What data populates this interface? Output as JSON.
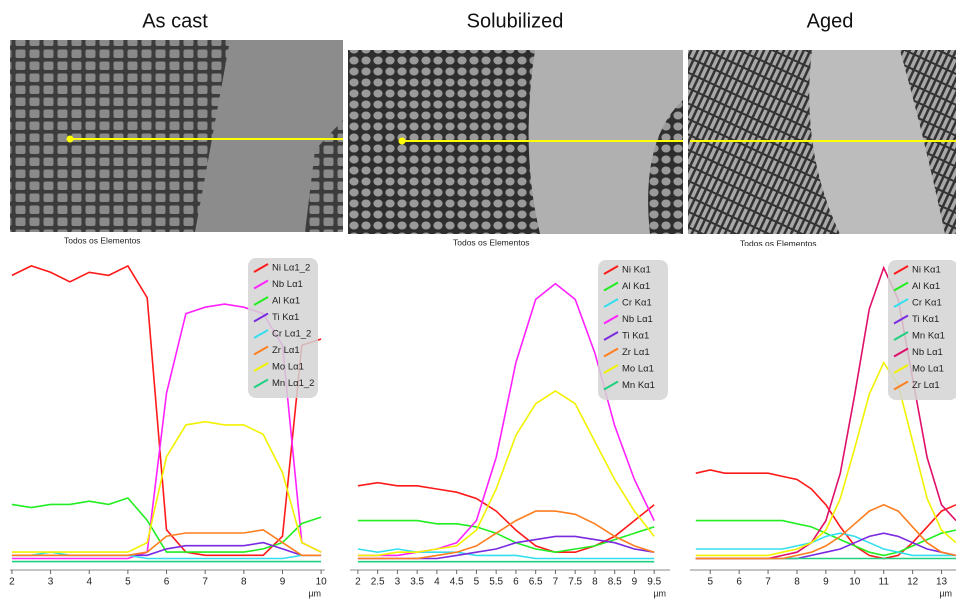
{
  "chart_data": [
    {
      "type": "line",
      "title": "As cast",
      "subtitle": "Todos os Elementos",
      "x_label": "µm",
      "x": [
        2,
        2.5,
        3,
        3.5,
        4,
        4.5,
        5,
        5.5,
        6,
        6.5,
        7,
        7.5,
        8,
        8.5,
        9,
        9.5,
        10
      ],
      "xlim": [
        1.95,
        10.1
      ],
      "xticks": [
        2,
        3,
        4,
        5,
        6,
        7,
        8,
        9,
        10
      ],
      "ylim": [
        0,
        100
      ],
      "series": [
        {
          "name": "Ni Lα1_2",
          "color": "#ff1a1a",
          "values": [
            92,
            95,
            93,
            90,
            93,
            92,
            95,
            85,
            12,
            5,
            4,
            4,
            4,
            4,
            10,
            70,
            72
          ]
        },
        {
          "name": "Nb Lα1",
          "color": "#ff22ff",
          "values": [
            3,
            3,
            3,
            3,
            3,
            3,
            3,
            5,
            55,
            80,
            82,
            83,
            82,
            80,
            70,
            8,
            5
          ]
        },
        {
          "name": "Al Kα1",
          "color": "#22ee22",
          "values": [
            20,
            19,
            20,
            20,
            21,
            20,
            22,
            15,
            5,
            5,
            5,
            5,
            5,
            6,
            8,
            14,
            16
          ]
        },
        {
          "name": "Ti Kα1",
          "color": "#7a2ae0",
          "values": [
            4,
            4,
            4,
            4,
            4,
            4,
            4,
            4,
            6,
            7,
            7,
            7,
            7,
            8,
            6,
            4,
            4
          ]
        },
        {
          "name": "Cr Lα1_2",
          "color": "#33dfee",
          "values": [
            4,
            4,
            5,
            4,
            4,
            4,
            4,
            3,
            3,
            3,
            3,
            3,
            3,
            3,
            3,
            4,
            4
          ]
        },
        {
          "name": "Zr Lα1",
          "color": "#ff7f20",
          "values": [
            4,
            4,
            4,
            4,
            4,
            4,
            4,
            5,
            10,
            11,
            11,
            11,
            11,
            12,
            8,
            4,
            4
          ]
        },
        {
          "name": "Mo Lα1",
          "color": "#f2f200",
          "values": [
            5,
            5,
            5,
            5,
            5,
            5,
            5,
            8,
            35,
            45,
            46,
            45,
            45,
            42,
            30,
            8,
            5
          ]
        },
        {
          "name": "Mn Lα1_2",
          "color": "#20d080",
          "values": [
            2,
            2,
            2,
            2,
            2,
            2,
            2,
            2,
            2,
            2,
            2,
            2,
            2,
            2,
            2,
            2,
            2
          ]
        }
      ]
    },
    {
      "type": "line",
      "title": "Solubilized",
      "subtitle": "Todos os Elementos",
      "x_label": "µm",
      "x": [
        2,
        2.5,
        3,
        3.5,
        4,
        4.5,
        5,
        5.5,
        6,
        6.5,
        7,
        7.5,
        8,
        8.5,
        9,
        9.5
      ],
      "xlim": [
        1.8,
        9.9
      ],
      "xticks": [
        2,
        2.5,
        3,
        3.5,
        4,
        4.5,
        5,
        5.5,
        6,
        6.5,
        7,
        7.5,
        8,
        8.5,
        9,
        9.5
      ],
      "ylim": [
        0,
        100
      ],
      "series": [
        {
          "name": "Ni Kα1",
          "color": "#ff1a1a",
          "values": [
            26,
            27,
            26,
            26,
            25,
            24,
            22,
            18,
            12,
            7,
            5,
            5,
            7,
            10,
            15,
            20
          ]
        },
        {
          "name": "Al Kα1",
          "color": "#22ee22",
          "values": [
            15,
            15,
            15,
            15,
            14,
            14,
            13,
            11,
            8,
            6,
            5,
            6,
            7,
            9,
            11,
            13
          ]
        },
        {
          "name": "Cr Kα1",
          "color": "#33dfee",
          "values": [
            6,
            5,
            6,
            5,
            5,
            5,
            4,
            4,
            4,
            3,
            3,
            3,
            3,
            3,
            3,
            3
          ]
        },
        {
          "name": "Nb Lα1",
          "color": "#ff22ff",
          "values": [
            4,
            4,
            4,
            5,
            6,
            8,
            15,
            35,
            65,
            85,
            90,
            85,
            68,
            45,
            28,
            15
          ]
        },
        {
          "name": "Ti Kα1",
          "color": "#7a2ae0",
          "values": [
            3,
            3,
            3,
            3,
            3,
            4,
            5,
            6,
            8,
            9,
            10,
            10,
            9,
            8,
            6,
            5
          ]
        },
        {
          "name": "Zr Lα1",
          "color": "#ff7f20",
          "values": [
            3,
            3,
            3,
            3,
            4,
            5,
            7,
            11,
            15,
            18,
            18,
            17,
            14,
            10,
            7,
            5
          ]
        },
        {
          "name": "Mo Lα1",
          "color": "#f2f200",
          "values": [
            4,
            4,
            5,
            5,
            6,
            7,
            12,
            25,
            42,
            52,
            56,
            52,
            40,
            28,
            18,
            10
          ]
        },
        {
          "name": "Mn Kα1",
          "color": "#20d080",
          "values": [
            2,
            2,
            2,
            2,
            2,
            2,
            2,
            2,
            2,
            2,
            2,
            2,
            2,
            2,
            2,
            2
          ]
        }
      ]
    },
    {
      "type": "line",
      "title": "Aged",
      "subtitle": "Todos os Elementos",
      "x_label": "µm",
      "x": [
        4.5,
        5,
        5.5,
        6,
        6.5,
        7,
        7.5,
        8,
        8.5,
        9,
        9.5,
        10,
        10.5,
        11,
        11.5,
        12,
        12.5,
        13,
        13.5
      ],
      "xlim": [
        4.3,
        13.5
      ],
      "xticks": [
        5,
        6,
        7,
        8,
        9,
        10,
        11,
        12,
        13
      ],
      "ylim": [
        0,
        100
      ],
      "series": [
        {
          "name": "Ni Kα1",
          "color": "#ff1a1a",
          "values": [
            30,
            31,
            30,
            30,
            30,
            30,
            29,
            28,
            25,
            20,
            13,
            7,
            4,
            3,
            4,
            8,
            13,
            18,
            20
          ]
        },
        {
          "name": "Al Kα1",
          "color": "#22ee22",
          "values": [
            15,
            15,
            15,
            15,
            15,
            15,
            15,
            14,
            13,
            11,
            9,
            7,
            5,
            4,
            5,
            7,
            9,
            11,
            12
          ]
        },
        {
          "name": "Cr Kα1",
          "color": "#33dfee",
          "values": [
            6,
            6,
            6,
            6,
            6,
            6,
            6,
            7,
            8,
            10,
            11,
            10,
            8,
            6,
            5,
            4,
            4,
            4,
            4
          ]
        },
        {
          "name": "Ti Kα1",
          "color": "#7a2ae0",
          "values": [
            3,
            3,
            3,
            3,
            3,
            3,
            3,
            3,
            4,
            5,
            6,
            8,
            10,
            11,
            10,
            8,
            6,
            5,
            4
          ]
        },
        {
          "name": "Mn Kα1",
          "color": "#20d080",
          "values": [
            3,
            3,
            3,
            3,
            3,
            3,
            3,
            3,
            3,
            3,
            3,
            3,
            3,
            3,
            3,
            3,
            3,
            3,
            3
          ]
        },
        {
          "name": "Nb Lα1",
          "color": "#e0106a",
          "values": [
            3,
            3,
            3,
            3,
            3,
            3,
            4,
            5,
            8,
            15,
            30,
            55,
            82,
            95,
            85,
            60,
            35,
            20,
            15
          ]
        },
        {
          "name": "Mo Lα1",
          "color": "#f2f200",
          "values": [
            4,
            4,
            4,
            4,
            4,
            4,
            5,
            6,
            8,
            12,
            22,
            38,
            55,
            65,
            58,
            40,
            22,
            12,
            8
          ]
        },
        {
          "name": "Zr Lα1",
          "color": "#ff7f20",
          "values": [
            3,
            3,
            3,
            3,
            3,
            3,
            3,
            4,
            5,
            7,
            10,
            14,
            18,
            20,
            18,
            13,
            8,
            5,
            4
          ]
        }
      ]
    }
  ]
}
